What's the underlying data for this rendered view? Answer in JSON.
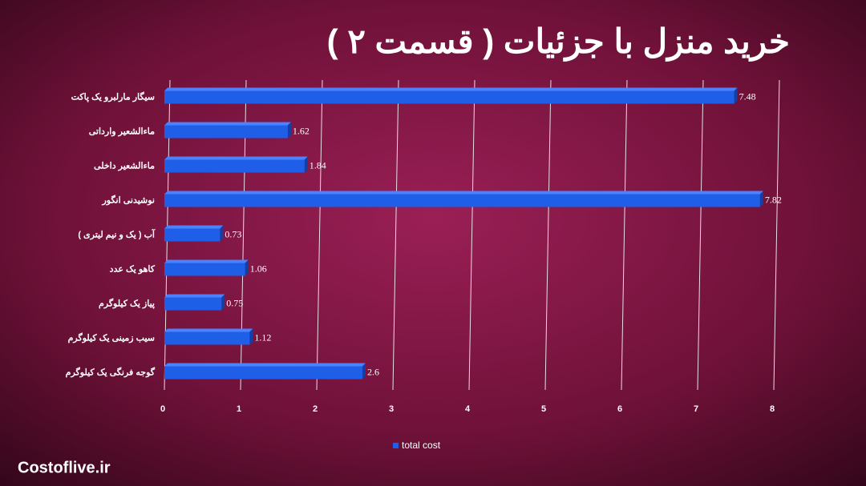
{
  "chart_data": {
    "type": "bar",
    "orientation": "horizontal",
    "title": "خرید منزل با جزئیات ( قسمت ۲ )",
    "categories": [
      "سیگار مارلبرو یک پاکت",
      "ماءالشعیر وارداتی",
      "ماءالشعیر داخلی",
      "نوشیدنی انگور",
      "آب ( یک و نیم لیتری )",
      "کاهو  یک عدد",
      "پیاز یک کیلوگرم",
      "سیب زمینی یک کیلوگرم",
      "گوجه فرنگی یک کیلوگرم"
    ],
    "series": [
      {
        "name": "total cost",
        "color": "#1f5fe8",
        "values": [
          7.48,
          1.62,
          1.84,
          7.82,
          0.73,
          1.06,
          0.75,
          1.12,
          2.6
        ]
      }
    ],
    "xlim": [
      0,
      8
    ],
    "xticks": [
      0,
      1,
      2,
      3,
      4,
      5,
      6,
      7,
      8
    ],
    "grid": true,
    "legend": "bottom",
    "source": "Costoflive.ir"
  }
}
